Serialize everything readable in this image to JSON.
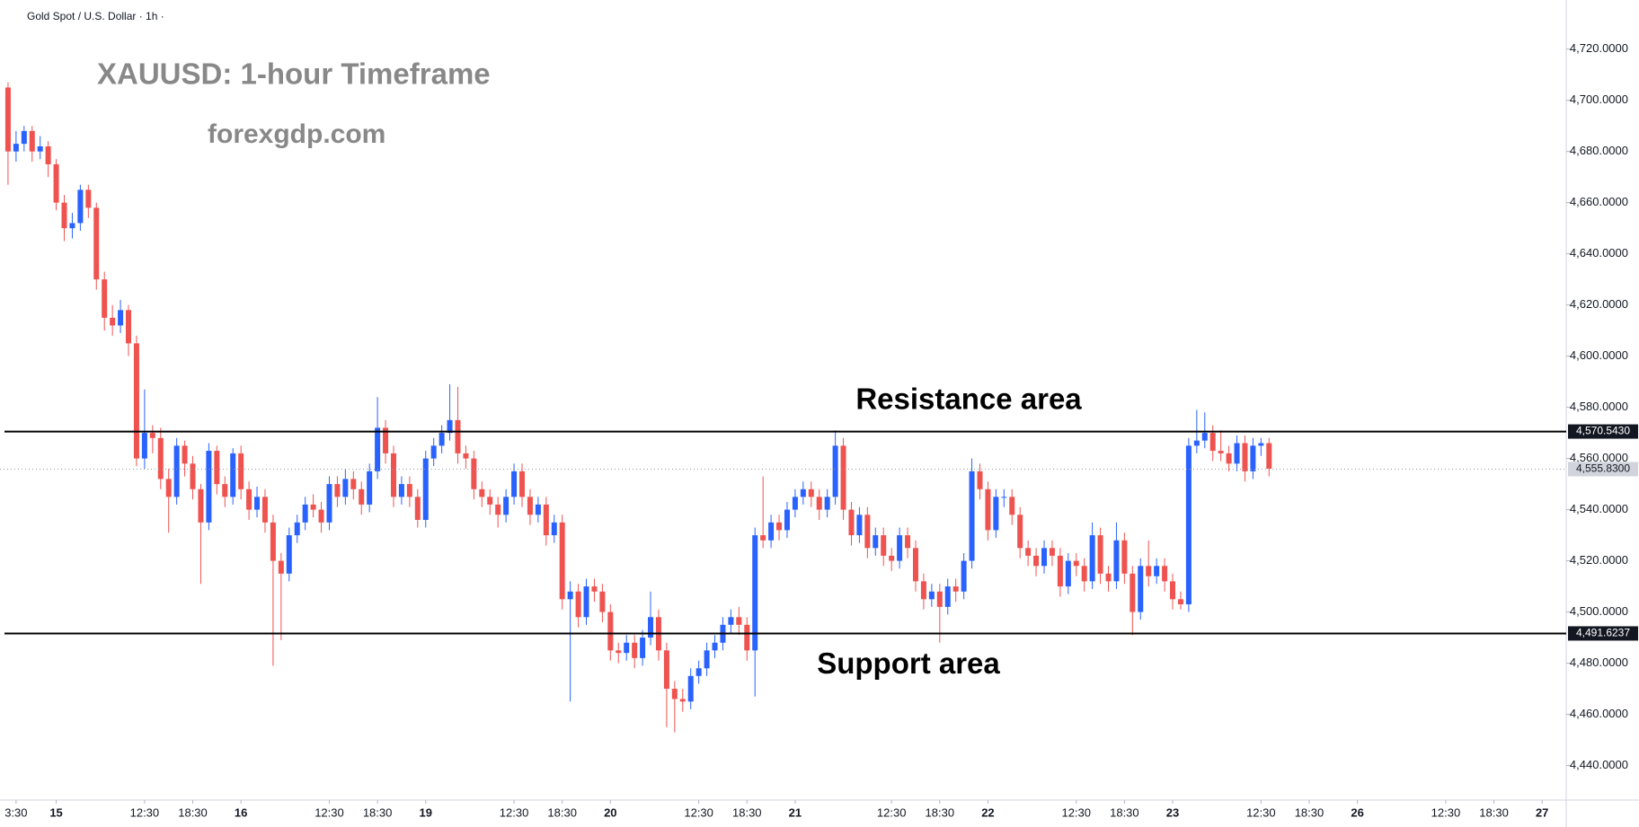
{
  "chart_data": {
    "type": "candlestick",
    "header": "Gold Spot / U.S. Dollar · 1h ·",
    "title": "XAUUSD: 1-hour Timeframe",
    "subtitle": "forexgdp.com",
    "up_color": "#2962ff",
    "down_color": "#ef5350",
    "ylim": [
      4426.5,
      4739.2
    ],
    "yticks": [
      {
        "value": 4440,
        "label": "4,440.0000"
      },
      {
        "value": 4460,
        "label": "4,460.0000"
      },
      {
        "value": 4480,
        "label": "4,480.0000"
      },
      {
        "value": 4500,
        "label": "4,500.0000"
      },
      {
        "value": 4520,
        "label": "4,520.0000"
      },
      {
        "value": 4540,
        "label": "4,540.0000"
      },
      {
        "value": 4560,
        "label": "4,560.0000"
      },
      {
        "value": 4580,
        "label": "4,580.0000"
      },
      {
        "value": 4600,
        "label": "4,600.0000"
      },
      {
        "value": 4620,
        "label": "4,620.0000"
      },
      {
        "value": 4640,
        "label": "4,640.0000"
      },
      {
        "value": 4660,
        "label": "4,660.0000"
      },
      {
        "value": 4680,
        "label": "4,680.0000"
      },
      {
        "value": 4700,
        "label": "4,700.0000"
      },
      {
        "value": 4720,
        "label": "4,720.0000"
      }
    ],
    "xlim": [
      -1,
      194
    ],
    "xticks": [
      {
        "value": 1,
        "label": "3:30"
      },
      {
        "value": 6,
        "label": "15"
      },
      {
        "value": 17,
        "label": "12:30"
      },
      {
        "value": 23,
        "label": "18:30"
      },
      {
        "value": 29,
        "label": "16"
      },
      {
        "value": 40,
        "label": "12:30"
      },
      {
        "value": 46,
        "label": "18:30"
      },
      {
        "value": 52,
        "label": "19"
      },
      {
        "value": 63,
        "label": "12:30"
      },
      {
        "value": 69,
        "label": "18:30"
      },
      {
        "value": 75,
        "label": "20"
      },
      {
        "value": 86,
        "label": "12:30"
      },
      {
        "value": 92,
        "label": "18:30"
      },
      {
        "value": 98,
        "label": "21"
      },
      {
        "value": 110,
        "label": "12:30"
      },
      {
        "value": 116,
        "label": "18:30"
      },
      {
        "value": 122,
        "label": "22"
      },
      {
        "value": 133,
        "label": "12:30"
      },
      {
        "value": 139,
        "label": "18:30"
      },
      {
        "value": 145,
        "label": "23"
      },
      {
        "value": 156,
        "label": "12:30"
      },
      {
        "value": 162,
        "label": "18:30"
      },
      {
        "value": 168,
        "label": "26"
      },
      {
        "value": 179,
        "label": "12:30"
      },
      {
        "value": 185,
        "label": "18:30"
      },
      {
        "value": 191,
        "label": "27"
      }
    ],
    "levels": [
      {
        "value": 4570.543,
        "label": "4,570.5430",
        "text": "Resistance area"
      },
      {
        "value": 4491.6237,
        "label": "4,491.6237",
        "text": "Support area"
      }
    ],
    "last_price": {
      "value": 4555.83,
      "label": "4,555.8300"
    },
    "candles": [
      [
        4705,
        4707,
        4667,
        4680
      ],
      [
        4680,
        4688,
        4676,
        4683
      ],
      [
        4683,
        4690,
        4680,
        4688
      ],
      [
        4688,
        4690,
        4676,
        4680
      ],
      [
        4680,
        4686,
        4677,
        4682
      ],
      [
        4682,
        4684,
        4670,
        4675
      ],
      [
        4675,
        4677,
        4657,
        4660
      ],
      [
        4660,
        4663,
        4645,
        4650
      ],
      [
        4650,
        4656,
        4646,
        4652
      ],
      [
        4652,
        4667,
        4649,
        4665
      ],
      [
        4665,
        4667,
        4654,
        4658
      ],
      [
        4658,
        4660,
        4626,
        4630
      ],
      [
        4630,
        4633,
        4610,
        4615
      ],
      [
        4615,
        4620,
        4608,
        4612
      ],
      [
        4612,
        4622,
        4609,
        4618
      ],
      [
        4618,
        4620,
        4600,
        4605
      ],
      [
        4605,
        4608,
        4557,
        4560
      ],
      [
        4560,
        4587,
        4556,
        4570
      ],
      [
        4570,
        4573,
        4562,
        4568
      ],
      [
        4568,
        4572,
        4548,
        4552
      ],
      [
        4552,
        4556,
        4531,
        4545
      ],
      [
        4545,
        4568,
        4542,
        4565
      ],
      [
        4565,
        4567,
        4553,
        4558
      ],
      [
        4558,
        4561,
        4544,
        4548
      ],
      [
        4548,
        4550,
        4511,
        4535
      ],
      [
        4535,
        4566,
        4532,
        4563
      ],
      [
        4563,
        4565,
        4546,
        4550
      ],
      [
        4550,
        4553,
        4541,
        4545
      ],
      [
        4545,
        4564,
        4542,
        4562
      ],
      [
        4562,
        4565,
        4544,
        4548
      ],
      [
        4548,
        4551,
        4536,
        4540
      ],
      [
        4540,
        4549,
        4537,
        4545
      ],
      [
        4545,
        4548,
        4531,
        4535
      ],
      [
        4535,
        4538,
        4479,
        4520
      ],
      [
        4520,
        4523,
        4489,
        4515
      ],
      [
        4515,
        4533,
        4512,
        4530
      ],
      [
        4530,
        4538,
        4527,
        4535
      ],
      [
        4535,
        4545,
        4532,
        4542
      ],
      [
        4542,
        4546,
        4537,
        4540
      ],
      [
        4540,
        4543,
        4531,
        4535
      ],
      [
        4535,
        4553,
        4532,
        4550
      ],
      [
        4550,
        4553,
        4541,
        4545
      ],
      [
        4545,
        4556,
        4542,
        4552
      ],
      [
        4552,
        4555,
        4544,
        4548
      ],
      [
        4548,
        4551,
        4538,
        4542
      ],
      [
        4542,
        4558,
        4539,
        4555
      ],
      [
        4555,
        4584,
        4552,
        4572
      ],
      [
        4572,
        4575,
        4558,
        4562
      ],
      [
        4562,
        4565,
        4541,
        4545
      ],
      [
        4545,
        4553,
        4542,
        4550
      ],
      [
        4550,
        4553,
        4541,
        4545
      ],
      [
        4545,
        4548,
        4533,
        4536
      ],
      [
        4536,
        4563,
        4533,
        4560
      ],
      [
        4560,
        4568,
        4557,
        4565
      ],
      [
        4565,
        4573,
        4562,
        4570
      ],
      [
        4570,
        4589,
        4567,
        4575
      ],
      [
        4575,
        4588,
        4558,
        4562
      ],
      [
        4562,
        4565,
        4556,
        4560
      ],
      [
        4560,
        4563,
        4544,
        4548
      ],
      [
        4548,
        4551,
        4541,
        4545
      ],
      [
        4545,
        4548,
        4538,
        4542
      ],
      [
        4542,
        4545,
        4533,
        4538
      ],
      [
        4538,
        4548,
        4535,
        4545
      ],
      [
        4545,
        4558,
        4542,
        4555
      ],
      [
        4555,
        4558,
        4541,
        4545
      ],
      [
        4545,
        4548,
        4534,
        4538
      ],
      [
        4538,
        4545,
        4535,
        4542
      ],
      [
        4542,
        4545,
        4526,
        4530
      ],
      [
        4530,
        4538,
        4527,
        4535
      ],
      [
        4535,
        4538,
        4501,
        4505
      ],
      [
        4505,
        4512,
        4465,
        4508
      ],
      [
        4508,
        4511,
        4494,
        4498
      ],
      [
        4498,
        4513,
        4495,
        4510
      ],
      [
        4510,
        4513,
        4504,
        4508
      ],
      [
        4508,
        4511,
        4496,
        4500
      ],
      [
        4500,
        4503,
        4481,
        4485
      ],
      [
        4485,
        4488,
        4480,
        4484
      ],
      [
        4484,
        4491,
        4481,
        4488
      ],
      [
        4488,
        4491,
        4478,
        4482
      ],
      [
        4482,
        4493,
        4479,
        4490
      ],
      [
        4490,
        4508,
        4487,
        4498
      ],
      [
        4498,
        4501,
        4481,
        4485
      ],
      [
        4485,
        4488,
        4455,
        4470
      ],
      [
        4470,
        4473,
        4453,
        4466
      ],
      [
        4466,
        4470,
        4461,
        4465
      ],
      [
        4465,
        4478,
        4462,
        4475
      ],
      [
        4475,
        4481,
        4472,
        4478
      ],
      [
        4478,
        4488,
        4475,
        4485
      ],
      [
        4485,
        4491,
        4482,
        4488
      ],
      [
        4488,
        4498,
        4485,
        4495
      ],
      [
        4495,
        4501,
        4492,
        4498
      ],
      [
        4498,
        4502,
        4491,
        4495
      ],
      [
        4495,
        4498,
        4481,
        4485
      ],
      [
        4485,
        4533,
        4467,
        4530
      ],
      [
        4530,
        4553,
        4525,
        4528
      ],
      [
        4528,
        4538,
        4525,
        4535
      ],
      [
        4535,
        4538,
        4528,
        4532
      ],
      [
        4532,
        4543,
        4529,
        4540
      ],
      [
        4540,
        4548,
        4537,
        4545
      ],
      [
        4545,
        4551,
        4542,
        4548
      ],
      [
        4548,
        4551,
        4541,
        4545
      ],
      [
        4545,
        4548,
        4536,
        4540
      ],
      [
        4540,
        4548,
        4537,
        4545
      ],
      [
        4545,
        4571,
        4542,
        4565
      ],
      [
        4565,
        4568,
        4536,
        4540
      ],
      [
        4540,
        4543,
        4526,
        4530
      ],
      [
        4530,
        4541,
        4527,
        4538
      ],
      [
        4538,
        4541,
        4521,
        4525
      ],
      [
        4525,
        4533,
        4522,
        4530
      ],
      [
        4530,
        4533,
        4518,
        4522
      ],
      [
        4522,
        4525,
        4516,
        4520
      ],
      [
        4520,
        4533,
        4517,
        4530
      ],
      [
        4530,
        4533,
        4521,
        4525
      ],
      [
        4525,
        4528,
        4508,
        4512
      ],
      [
        4512,
        4515,
        4501,
        4505
      ],
      [
        4505,
        4511,
        4502,
        4508
      ],
      [
        4508,
        4511,
        4488,
        4502
      ],
      [
        4502,
        4513,
        4499,
        4510
      ],
      [
        4510,
        4513,
        4504,
        4508
      ],
      [
        4508,
        4523,
        4505,
        4520
      ],
      [
        4520,
        4560,
        4517,
        4555
      ],
      [
        4555,
        4558,
        4544,
        4548
      ],
      [
        4548,
        4551,
        4528,
        4532
      ],
      [
        4532,
        4548,
        4529,
        4545
      ],
      [
        4545,
        4548,
        4541,
        4545
      ],
      [
        4545,
        4548,
        4534,
        4538
      ],
      [
        4538,
        4541,
        4521,
        4525
      ],
      [
        4525,
        4528,
        4518,
        4522
      ],
      [
        4522,
        4525,
        4514,
        4518
      ],
      [
        4518,
        4528,
        4515,
        4525
      ],
      [
        4525,
        4528,
        4518,
        4522
      ],
      [
        4522,
        4525,
        4506,
        4510
      ],
      [
        4510,
        4523,
        4507,
        4520
      ],
      [
        4520,
        4523,
        4514,
        4518
      ],
      [
        4518,
        4521,
        4508,
        4512
      ],
      [
        4512,
        4535,
        4509,
        4530
      ],
      [
        4530,
        4533,
        4511,
        4515
      ],
      [
        4515,
        4518,
        4508,
        4512
      ],
      [
        4512,
        4535,
        4509,
        4528
      ],
      [
        4528,
        4531,
        4511,
        4515
      ],
      [
        4515,
        4518,
        4491,
        4500
      ],
      [
        4500,
        4521,
        4497,
        4518
      ],
      [
        4518,
        4528,
        4510,
        4514
      ],
      [
        4514,
        4521,
        4511,
        4518
      ],
      [
        4518,
        4521,
        4508,
        4512
      ],
      [
        4512,
        4515,
        4501,
        4505
      ],
      [
        4505,
        4508,
        4501,
        4503
      ],
      [
        4503,
        4568,
        4500,
        4565
      ],
      [
        4565,
        4579,
        4562,
        4567
      ],
      [
        4567,
        4578,
        4564,
        4570
      ],
      [
        4570,
        4573,
        4559,
        4563
      ],
      [
        4563,
        4571,
        4559,
        4562
      ],
      [
        4562,
        4565,
        4555,
        4558
      ],
      [
        4558,
        4569,
        4555,
        4566
      ],
      [
        4566,
        4569,
        4551,
        4555
      ],
      [
        4555,
        4568,
        4552,
        4565
      ],
      [
        4565,
        4568,
        4561,
        4566
      ],
      [
        4566,
        4568,
        4553,
        4556
      ]
    ]
  }
}
